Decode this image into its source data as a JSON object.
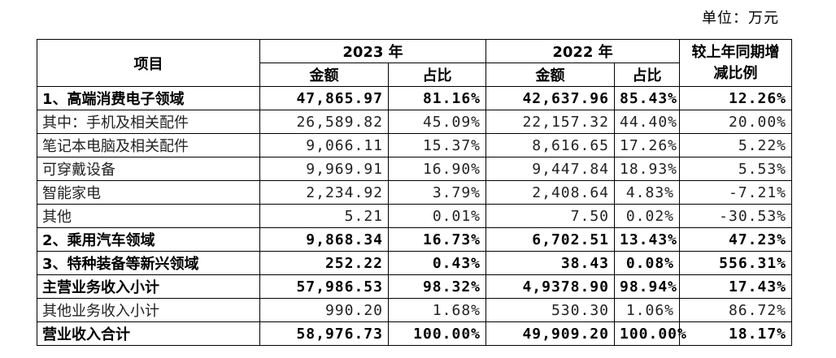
{
  "unit_note": "单位：万元",
  "header": {
    "item": "项目",
    "year_2023": "2023 年",
    "year_2022": "2022 年",
    "change": "较上年同期增减比例",
    "amount": "金额",
    "share": "占比"
  },
  "rows": [
    {
      "label": "1、高端消费电子领域",
      "a2023": "47,865.97",
      "s2023": "81.16%",
      "a2022": "42,637.96",
      "s2022": "85.43%",
      "chg": "12.26%",
      "bold": true
    },
    {
      "label": "其中：手机及相关配件",
      "a2023": "26,589.82",
      "s2023": "45.09%",
      "a2022": "22,157.32",
      "s2022": "44.40%",
      "chg": "20.00%",
      "bold": false
    },
    {
      "label": "笔记本电脑及相关配件",
      "a2023": "9,066.11",
      "s2023": "15.37%",
      "a2022": "8,616.65",
      "s2022": "17.26%",
      "chg": "5.22%",
      "bold": false
    },
    {
      "label": "可穿戴设备",
      "a2023": "9,969.91",
      "s2023": "16.90%",
      "a2022": "9,447.84",
      "s2022": "18.93%",
      "chg": "5.53%",
      "bold": false
    },
    {
      "label": "智能家电",
      "a2023": "2,234.92",
      "s2023": "3.79%",
      "a2022": "2,408.64",
      "s2022": "4.83%",
      "chg": "-7.21%",
      "bold": false
    },
    {
      "label": "其他",
      "a2023": "5.21",
      "s2023": "0.01%",
      "a2022": "7.50",
      "s2022": "0.02%",
      "chg": "-30.53%",
      "bold": false
    },
    {
      "label": "2、乘用汽车领域",
      "a2023": "9,868.34",
      "s2023": "16.73%",
      "a2022": "6,702.51",
      "s2022": "13.43%",
      "chg": "47.23%",
      "bold": true
    },
    {
      "label": "3、特种装备等新兴领域",
      "a2023": "252.22",
      "s2023": "0.43%",
      "a2022": "38.43",
      "s2022": "0.08%",
      "chg": "556.31%",
      "bold": true
    },
    {
      "label": "主营业务收入小计",
      "a2023": "57,986.53",
      "s2023": "98.32%",
      "a2022": "4,9378.90",
      "s2022": "98.94%",
      "chg": "17.43%",
      "bold": true
    },
    {
      "label": "其他业务收入小计",
      "a2023": "990.20",
      "s2023": "1.68%",
      "a2022": "530.30",
      "s2022": "1.06%",
      "chg": "86.72%",
      "bold": false
    },
    {
      "label": "营业收入合计",
      "a2023": "58,976.73",
      "s2023": "100.00%",
      "a2022": "49,909.20",
      "s2022": "100.00%",
      "chg": "18.17%",
      "bold": true
    }
  ]
}
